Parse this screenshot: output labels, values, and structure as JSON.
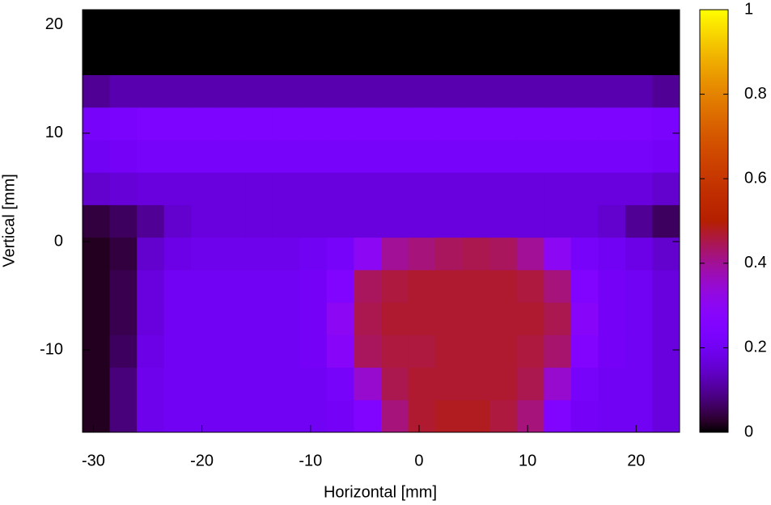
{
  "chart_data": {
    "type": "heatmap",
    "xlabel": "Horizontal [mm]",
    "ylabel": "Vertical [mm]",
    "xlim": [
      -31,
      24
    ],
    "ylim": [
      -17.6,
      21.4
    ],
    "xticks": [
      -30,
      -20,
      -10,
      0,
      10,
      20
    ],
    "yticks": [
      -10,
      0,
      10,
      20
    ],
    "zlim": [
      0,
      1
    ],
    "zticks": [
      0,
      0.2,
      0.4,
      0.6,
      0.8,
      1
    ],
    "xbins": [
      -31,
      -28.5,
      -26,
      -23.5,
      -21,
      -18.5,
      -16,
      -13.5,
      -11,
      -8.5,
      -6,
      -3.5,
      -1,
      1.5,
      4,
      6.5,
      9,
      11.5,
      14,
      16.5,
      19,
      21.5,
      24
    ],
    "ybins": [
      -17.6,
      -14.6,
      -11.6,
      -8.6,
      -5.6,
      -2.6,
      0.4,
      3.4,
      6.4,
      9.4,
      12.4,
      15.4,
      18.4,
      21.4
    ],
    "z": [
      [
        0.02,
        0.08,
        0.19,
        0.2,
        0.2,
        0.2,
        0.2,
        0.2,
        0.2,
        0.21,
        0.25,
        0.42,
        0.47,
        0.48,
        0.48,
        0.46,
        0.42,
        0.25,
        0.21,
        0.2,
        0.2,
        0.17
      ],
      [
        0.02,
        0.08,
        0.19,
        0.2,
        0.2,
        0.2,
        0.2,
        0.2,
        0.2,
        0.22,
        0.35,
        0.45,
        0.47,
        0.47,
        0.47,
        0.47,
        0.45,
        0.35,
        0.22,
        0.2,
        0.2,
        0.17
      ],
      [
        0.02,
        0.06,
        0.18,
        0.2,
        0.2,
        0.2,
        0.2,
        0.2,
        0.21,
        0.28,
        0.44,
        0.46,
        0.46,
        0.47,
        0.47,
        0.47,
        0.46,
        0.43,
        0.26,
        0.21,
        0.2,
        0.17
      ],
      [
        0.02,
        0.05,
        0.17,
        0.2,
        0.2,
        0.2,
        0.2,
        0.2,
        0.21,
        0.3,
        0.45,
        0.47,
        0.47,
        0.47,
        0.47,
        0.47,
        0.47,
        0.45,
        0.28,
        0.21,
        0.2,
        0.17
      ],
      [
        0.02,
        0.05,
        0.17,
        0.2,
        0.2,
        0.2,
        0.2,
        0.2,
        0.21,
        0.25,
        0.44,
        0.46,
        0.47,
        0.47,
        0.47,
        0.47,
        0.46,
        0.42,
        0.25,
        0.21,
        0.2,
        0.17
      ],
      [
        0.02,
        0.04,
        0.15,
        0.18,
        0.19,
        0.19,
        0.19,
        0.19,
        0.2,
        0.22,
        0.3,
        0.4,
        0.42,
        0.44,
        0.45,
        0.44,
        0.4,
        0.3,
        0.22,
        0.2,
        0.18,
        0.15
      ],
      [
        0.04,
        0.06,
        0.1,
        0.15,
        0.17,
        0.17,
        0.17,
        0.17,
        0.17,
        0.17,
        0.17,
        0.17,
        0.17,
        0.17,
        0.17,
        0.17,
        0.17,
        0.17,
        0.17,
        0.15,
        0.1,
        0.06
      ],
      [
        0.15,
        0.16,
        0.17,
        0.17,
        0.17,
        0.17,
        0.17,
        0.17,
        0.17,
        0.17,
        0.17,
        0.17,
        0.17,
        0.17,
        0.17,
        0.17,
        0.17,
        0.17,
        0.17,
        0.17,
        0.17,
        0.15
      ],
      [
        0.2,
        0.21,
        0.22,
        0.22,
        0.22,
        0.22,
        0.22,
        0.22,
        0.22,
        0.22,
        0.22,
        0.22,
        0.22,
        0.22,
        0.22,
        0.22,
        0.22,
        0.22,
        0.22,
        0.22,
        0.22,
        0.21
      ],
      [
        0.22,
        0.23,
        0.24,
        0.24,
        0.24,
        0.24,
        0.24,
        0.24,
        0.24,
        0.24,
        0.24,
        0.24,
        0.24,
        0.24,
        0.24,
        0.24,
        0.24,
        0.24,
        0.24,
        0.24,
        0.24,
        0.23
      ],
      [
        0.1,
        0.12,
        0.12,
        0.12,
        0.12,
        0.12,
        0.12,
        0.12,
        0.12,
        0.12,
        0.12,
        0.12,
        0.12,
        0.12,
        0.12,
        0.12,
        0.12,
        0.12,
        0.12,
        0.12,
        0.12,
        0.1
      ],
      [
        0,
        0,
        0,
        0,
        0,
        0,
        0,
        0,
        0,
        0,
        0,
        0,
        0,
        0,
        0,
        0,
        0,
        0,
        0,
        0,
        0,
        0
      ],
      [
        0,
        0,
        0,
        0,
        0,
        0,
        0,
        0,
        0,
        0,
        0,
        0,
        0,
        0,
        0,
        0,
        0,
        0,
        0,
        0,
        0,
        0
      ]
    ]
  }
}
